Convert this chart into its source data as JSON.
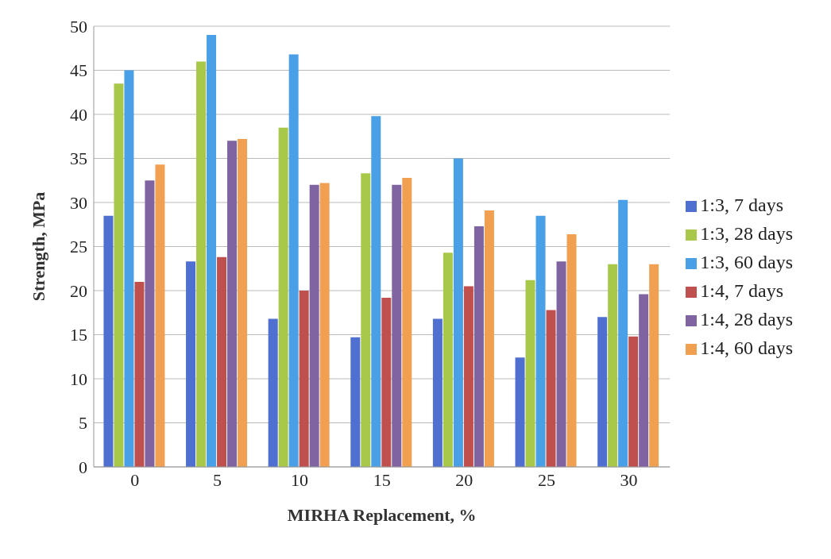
{
  "chart_data": {
    "type": "bar",
    "xlabel": "MIRHA Replacement, %",
    "ylabel": "Strength, MPa",
    "categories": [
      "0",
      "5",
      "10",
      "15",
      "20",
      "25",
      "30"
    ],
    "series": [
      {
        "name": "1:3, 7 days",
        "color": "#4f70d0",
        "values": [
          28.5,
          23.3,
          16.8,
          14.7,
          16.8,
          12.4,
          17
        ]
      },
      {
        "name": "1:3, 28 days",
        "color": "#a8c84a",
        "values": [
          43.5,
          46,
          38.5,
          33.3,
          24.3,
          21.2,
          23
        ]
      },
      {
        "name": "1:3, 60 days",
        "color": "#4aa0e6",
        "values": [
          45,
          49,
          46.8,
          39.8,
          35,
          28.5,
          30.3
        ]
      },
      {
        "name": "1:4, 7 days",
        "color": "#c0504d",
        "values": [
          21,
          23.8,
          20,
          19.2,
          20.5,
          17.8,
          14.8
        ]
      },
      {
        "name": "1:4, 28 days",
        "color": "#8064a2",
        "values": [
          32.5,
          37,
          32,
          32,
          27.3,
          23.3,
          19.6
        ]
      },
      {
        "name": "1:4, 60 days",
        "color": "#f0a050",
        "values": [
          34.3,
          37.2,
          32.2,
          32.8,
          29.1,
          26.4,
          23
        ]
      }
    ],
    "ylim": [
      0,
      50
    ],
    "yticks": [
      0,
      5,
      10,
      15,
      20,
      25,
      30,
      35,
      40,
      45,
      50
    ],
    "grid": "y",
    "legend": "right"
  }
}
